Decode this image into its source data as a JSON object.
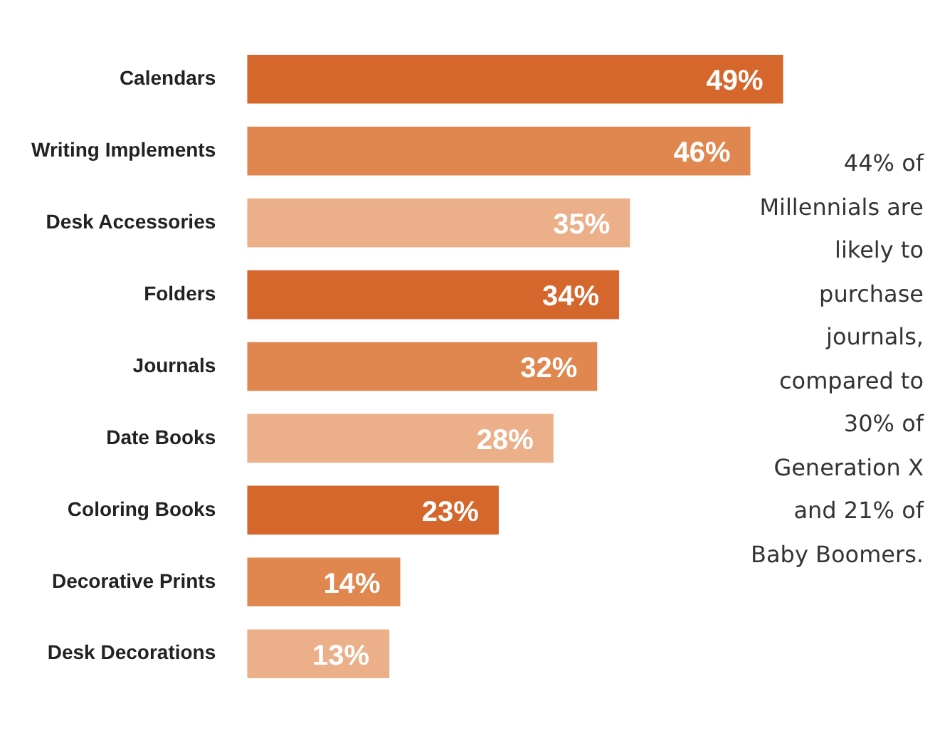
{
  "chart_data": {
    "type": "bar",
    "orientation": "horizontal",
    "categories": [
      "Calendars",
      "Writing Implements",
      "Desk Accessories",
      "Folders",
      "Journals",
      "Date Books",
      "Coloring Books",
      "Decorative Prints",
      "Desk Decorations"
    ],
    "values": [
      49,
      46,
      35,
      34,
      32,
      28,
      23,
      14,
      13
    ],
    "colors": [
      "#d5662c",
      "#e0874f",
      "#ebb08a",
      "#d5662c",
      "#e0874f",
      "#ebb08a",
      "#d5662c",
      "#e0874f",
      "#ebb08a"
    ],
    "value_labels": [
      "49%",
      "46%",
      "35%",
      "34%",
      "32%",
      "28%",
      "23%",
      "14%",
      "13%"
    ],
    "legend": false,
    "annotations": [
      "44% of Millennials are likely to purchase journals, compared to 30% of Generation X and 21% of Baby Boomers."
    ]
  }
}
